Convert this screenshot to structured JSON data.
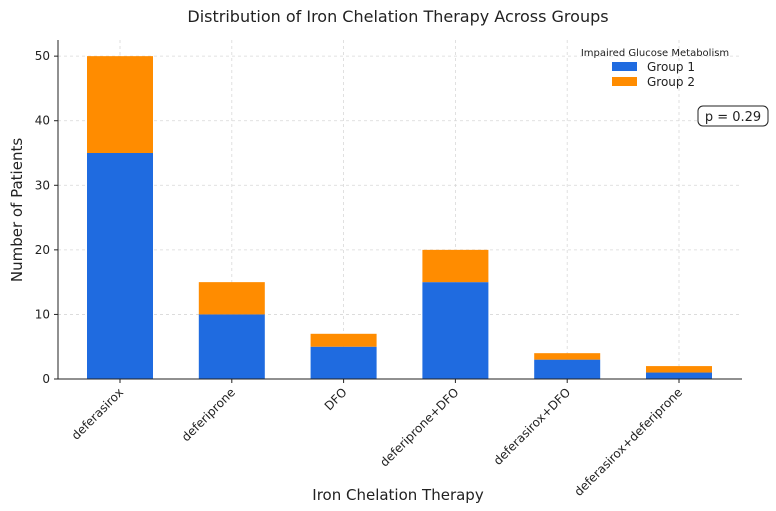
{
  "chart_data": {
    "type": "bar",
    "stacked": true,
    "title": "Distribution of Iron Chelation Therapy Across Groups",
    "xlabel": "Iron Chelation Therapy",
    "ylabel": "Number of Patients",
    "categories": [
      "deferasirox",
      "deferiprone",
      "DFO",
      "deferiprone+DFO",
      "deferasirox+DFO",
      "deferasirox+deferiprone"
    ],
    "series": [
      {
        "name": "Group 1",
        "values": [
          35,
          10,
          5,
          15,
          3,
          1
        ],
        "color": "#1f6be0"
      },
      {
        "name": "Group 2",
        "values": [
          15,
          5,
          2,
          5,
          1,
          1
        ],
        "color": "#ff8c00"
      }
    ],
    "ylim": [
      0,
      52.5
    ],
    "yticks": [
      0,
      10,
      20,
      30,
      40,
      50
    ],
    "legend_title": "Impaired Glucose Metabolism",
    "legend_position": "top-right",
    "grid": true,
    "annotation": "p = 0.29"
  }
}
